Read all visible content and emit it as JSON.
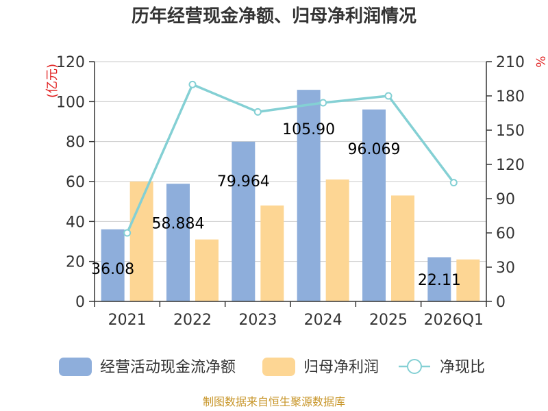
{
  "chart_data": {
    "type": "bar",
    "title": "历年经营现金净额、归母净利润情况",
    "categories": [
      "2021",
      "2022",
      "2023",
      "2024",
      "2025",
      "2026Q1"
    ],
    "series": [
      {
        "name": "经营活动现金流净额",
        "type": "bar",
        "axis": "left",
        "color": "#8eaedb",
        "values": [
          36.08,
          58.884,
          79.964,
          105.9,
          96.069,
          22.11
        ],
        "labels": [
          "36.08",
          "58.884",
          "79.964",
          "105.90",
          "96.069",
          "22.11"
        ]
      },
      {
        "name": "归母净利润",
        "type": "bar",
        "axis": "left",
        "color": "#fdd694",
        "values": [
          60,
          31,
          48,
          61,
          53,
          21
        ]
      },
      {
        "name": "净现比",
        "type": "line",
        "axis": "right",
        "color": "#84d0d4",
        "values": [
          60,
          190,
          166,
          174,
          180,
          104
        ]
      }
    ],
    "y_left": {
      "unit": "(亿元)",
      "ylim": [
        0,
        120
      ],
      "ticks": [
        0,
        20,
        40,
        60,
        80,
        100,
        120
      ]
    },
    "y_right": {
      "unit": "%",
      "ylim": [
        0,
        210
      ],
      "ticks": [
        0,
        30,
        60,
        90,
        120,
        150,
        180,
        210
      ]
    },
    "grid": true,
    "legend_position": "bottom"
  },
  "source": "制图数据来自恒生聚源数据库"
}
